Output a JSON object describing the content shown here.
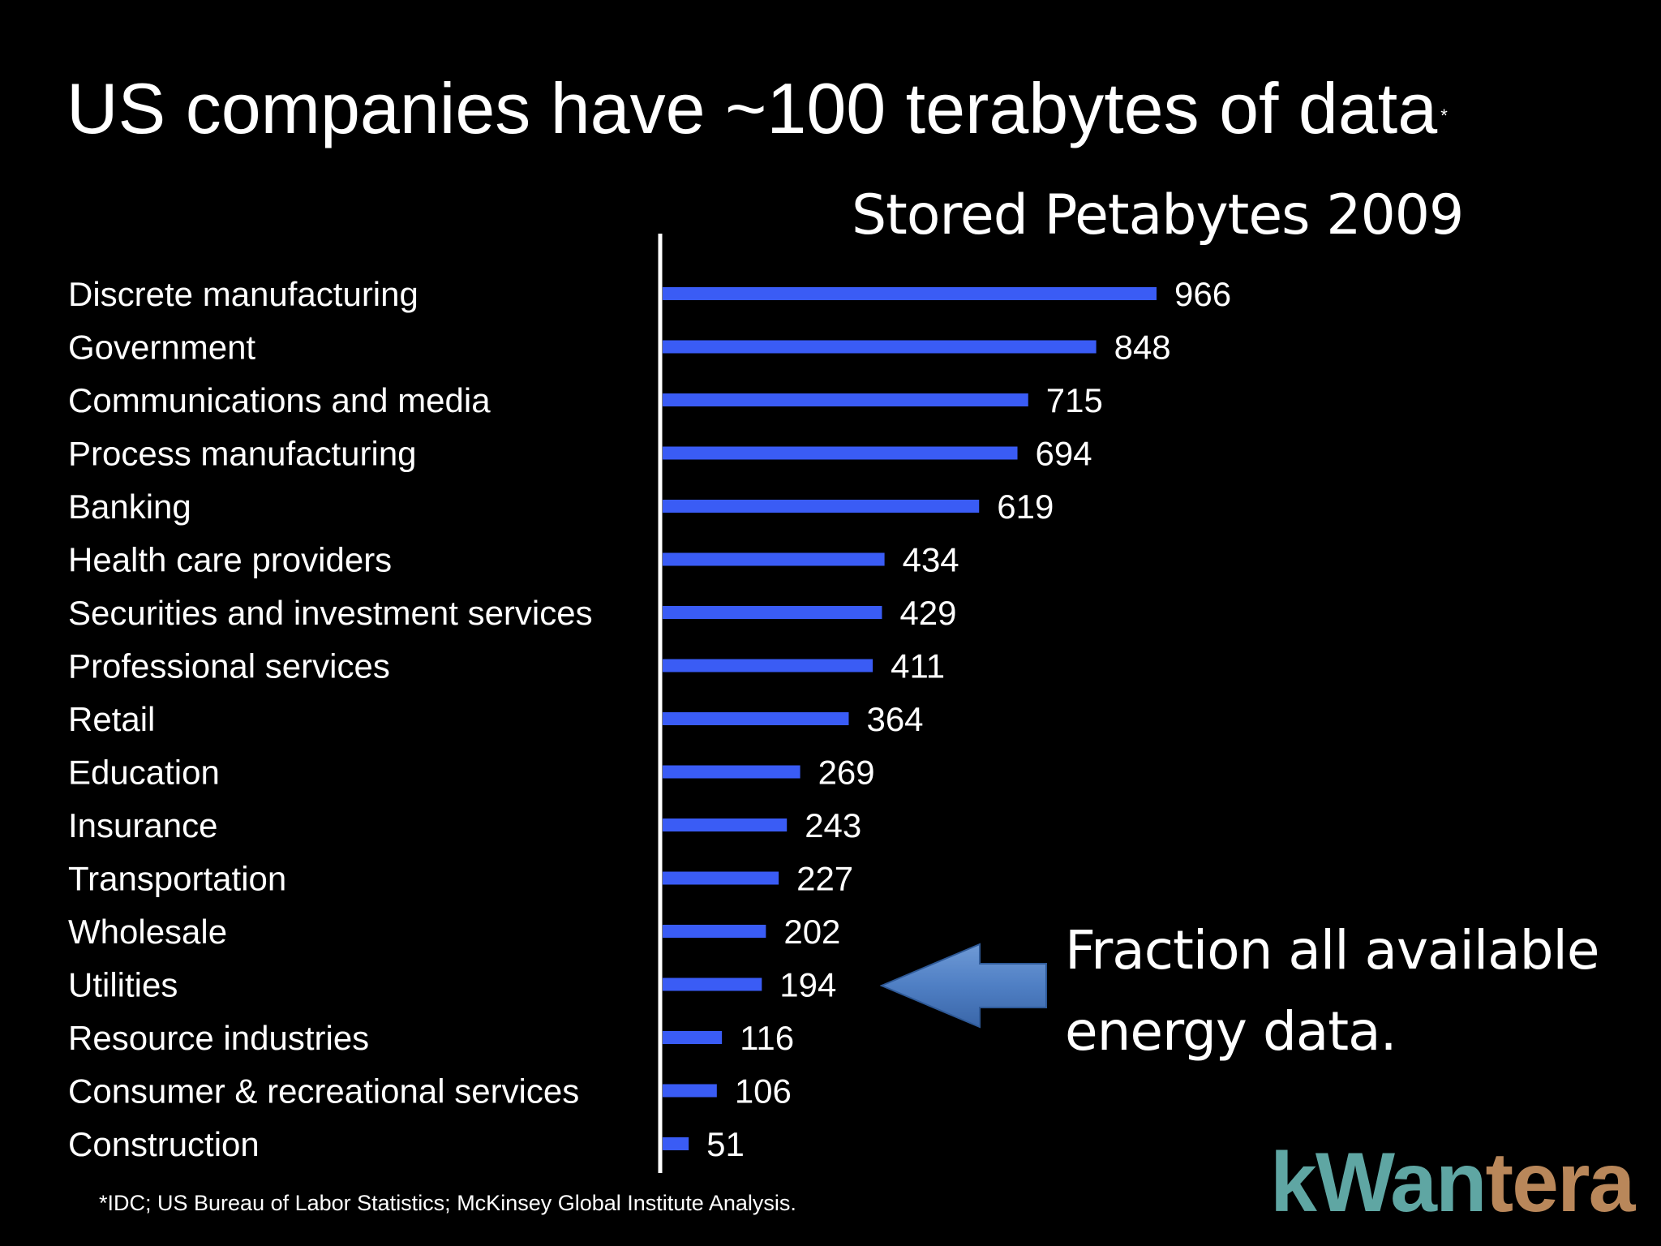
{
  "slide": {
    "title": "US companies have ~100 terabytes of data",
    "title_marker": "*",
    "callout_line1": "Fraction all available",
    "callout_line2": "energy data.",
    "callout_target": "Utilities",
    "footnote": "*IDC; US Bureau of Labor Statistics; McKinsey Global Institute Analysis.",
    "logo_part1": "kWan",
    "logo_part2": "tera"
  },
  "colors": {
    "background": "#000000",
    "bar": "#3a5cf5",
    "axis": "#ffffff",
    "text": "#ffffff",
    "arrow": "#4f7fc4",
    "logo_teal": "#5fa6a3",
    "logo_tan": "#b9875a"
  },
  "chart_data": {
    "type": "bar",
    "orientation": "horizontal",
    "title": "Stored Petabytes 2009",
    "categories": [
      "Discrete manufacturing",
      "Government",
      "Communications and media",
      "Process manufacturing",
      "Banking",
      "Health care providers",
      "Securities and investment services",
      "Professional services",
      "Retail",
      "Education",
      "Insurance",
      "Transportation",
      "Wholesale",
      "Utilities",
      "Resource industries",
      "Consumer & recreational services",
      "Construction"
    ],
    "values": [
      966,
      848,
      715,
      694,
      619,
      434,
      429,
      411,
      364,
      269,
      243,
      227,
      202,
      194,
      116,
      106,
      51
    ],
    "data_labels": true,
    "xlim": [
      0,
      1000
    ],
    "grid": false,
    "legend": "none"
  }
}
